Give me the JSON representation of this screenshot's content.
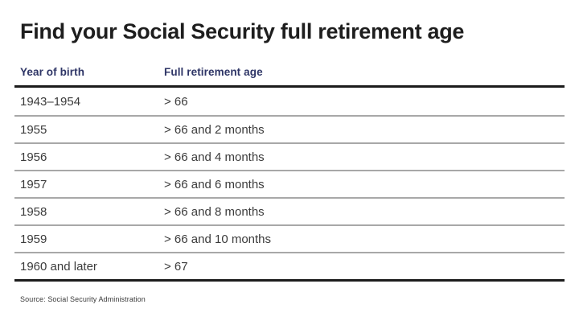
{
  "page": {
    "background": "#ffffff"
  },
  "colors": {
    "title_text": "#1e1e1e",
    "header_text": "#2e3566",
    "row_text": "#3b3b3b",
    "thick_rule": "#1c1c1c",
    "row_separator": "#a8a8a8",
    "source_text": "#3a3a3a"
  },
  "title": "Find your Social Security full retirement age",
  "source_note": "Source: Social Security Administration",
  "chart_data": {
    "type": "table",
    "title": "Find your Social Security full retirement age",
    "columns": [
      "Year of birth",
      "Full retirement age"
    ],
    "rows": [
      [
        "1943–1954",
        "> 66"
      ],
      [
        "1955",
        "> 66 and 2 months"
      ],
      [
        "1956",
        "> 66 and 4 months"
      ],
      [
        "1957",
        "> 66 and 6 months"
      ],
      [
        "1958",
        "> 66 and 8 months"
      ],
      [
        "1959",
        "> 66 and 10 months"
      ],
      [
        "1960 and later",
        "> 67"
      ]
    ],
    "source": "Source: Social Security Administration",
    "layout": {
      "grid": "horizontal-rules-only",
      "header_rule": "thick",
      "bottom_rule": "thick"
    }
  }
}
